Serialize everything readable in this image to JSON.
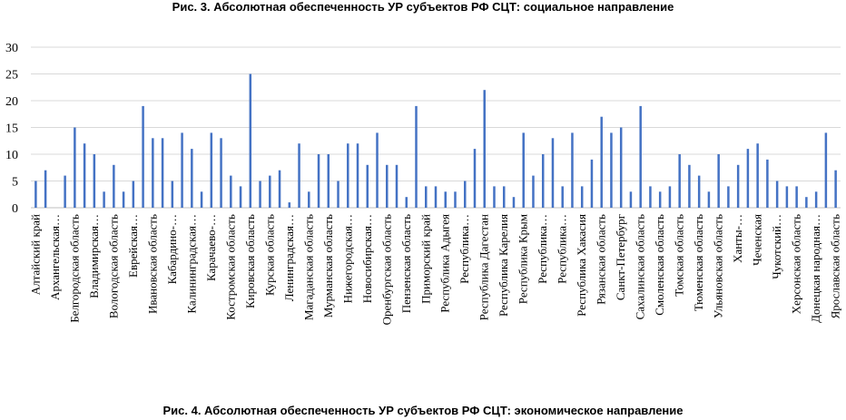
{
  "figure_title": "Рис. 3. Абсолютная обеспеченность УР субъектов РФ СЦТ: социальное направление",
  "next_caption": "Рис. 4. Абсолютная обеспеченность УР субъектов РФ СЦТ: экономическое направление",
  "bar_color": "#4472C4",
  "grid_color": "#d9d9d9",
  "chart_data": {
    "type": "bar",
    "title": "Рис. 3. Абсолютная обеспеченность УР субъектов РФ СЦТ: социальное направление",
    "xlabel": "",
    "ylabel": "",
    "ylim": [
      0,
      30
    ],
    "yticks": [
      0,
      5,
      10,
      15,
      20,
      25,
      30
    ],
    "grid": true,
    "legend": "none",
    "categories": [
      "Алтайский край",
      "",
      "Архангельская…",
      "",
      "Белгородская область",
      "",
      "Владимирская…",
      "",
      "Вологодская область",
      "",
      "Еврейская…",
      "",
      "Ивановская область",
      "",
      "Кабардино-…",
      "",
      "Калининградская…",
      "",
      "Карачаево-…",
      "",
      "Костромская область",
      "",
      "Кировская область",
      "",
      "Курская область",
      "",
      "Ленинградская…",
      "",
      "Магаданская область",
      "",
      "Мурманская область",
      "",
      "Нижегородская…",
      "",
      "Новосибирская…",
      "",
      "Оренбургская область",
      "",
      "Пензенская область",
      "",
      "Приморский край",
      "",
      "Республика Адыгея",
      "",
      "Республика…",
      "",
      "Республика Дагестан",
      "",
      "Республика Карелия",
      "",
      "Республика Крым",
      "",
      "Республика…",
      "",
      "Республика…",
      "",
      "Республика Хакасия",
      "",
      "Рязанская область",
      "",
      "Санкт-Петербург",
      "",
      "Сахалинская область",
      "",
      "Смоленская область",
      "",
      "Томская область",
      "",
      "Тюменская область",
      "",
      "Ульяновская область",
      "",
      "Ханты-…",
      "",
      "Чеченская",
      "",
      "Чукотский…",
      "",
      "Херсонская область",
      "",
      "Донецкая народная…",
      "",
      "Ярославская область"
    ],
    "values": [
      5,
      7,
      0,
      6,
      15,
      12,
      10,
      3,
      8,
      3,
      5,
      19,
      13,
      13,
      5,
      14,
      11,
      3,
      14,
      13,
      6,
      4,
      25,
      5,
      6,
      7,
      1,
      12,
      3,
      10,
      10,
      5,
      12,
      12,
      8,
      14,
      8,
      8,
      2,
      19,
      4,
      4,
      3,
      3,
      5,
      11,
      22,
      4,
      4,
      2,
      14,
      6,
      10,
      13,
      4,
      14,
      4,
      9,
      17,
      14,
      15,
      3,
      19,
      4,
      3,
      4,
      10,
      8,
      6,
      3,
      10,
      4,
      8,
      11,
      12,
      9,
      5,
      4,
      4,
      2,
      3,
      14,
      7
    ]
  }
}
